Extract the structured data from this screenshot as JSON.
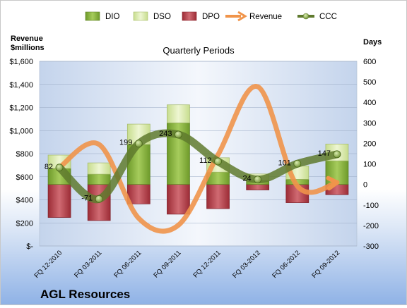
{
  "company": "AGL Resources",
  "chart_data": {
    "type": "bar",
    "title": "Quarterly Periods",
    "left_axis_label": [
      "Revenue",
      "$millions"
    ],
    "right_axis_label": "Days",
    "categories": [
      "FQ 12-2010",
      "FQ 03-2011",
      "FQ 06-2011",
      "FQ 09-2011",
      "FQ 12-2011",
      "FQ 03-2012",
      "FQ 06-2012",
      "FQ 09-2012"
    ],
    "left_axis": {
      "range": [
        0,
        1600
      ],
      "ticks": [
        0,
        200,
        400,
        600,
        800,
        1000,
        1200,
        1400,
        1600
      ],
      "tick_labels": [
        "$-",
        "$200",
        "$400",
        "$600",
        "$800",
        "$1,000",
        "$1,200",
        "$1,400",
        "$1,600"
      ]
    },
    "right_axis": {
      "range": [
        -300,
        600
      ],
      "ticks": [
        -300,
        -200,
        -100,
        0,
        100,
        200,
        300,
        400,
        500,
        600
      ],
      "tick_labels": [
        "-300",
        "-200",
        "-100",
        "0",
        "100",
        "200",
        "300",
        "400",
        "500",
        "600"
      ]
    },
    "legend": [
      "DIO",
      "DSO",
      "DPO",
      "Revenue",
      "CCC"
    ],
    "legend_position": "top",
    "gridlines": "horizontal",
    "series": [
      {
        "name": "DIO",
        "axis": "right",
        "color": "#77a033",
        "values": [
          78,
          50,
          195,
          300,
          60,
          20,
          25,
          115
        ]
      },
      {
        "name": "DSO",
        "axis": "right",
        "color": "#d7e8a6",
        "values": [
          65,
          55,
          99,
          88,
          70,
          31,
          65,
          82
        ]
      },
      {
        "name": "DPO",
        "axis": "right",
        "color": "#b8404a",
        "values": [
          -161,
          -176,
          -95,
          -145,
          -118,
          -27,
          -89,
          -50
        ]
      },
      {
        "name": "Revenue",
        "axis": "left",
        "color": "#f0944a",
        "values": [
          680,
          880,
          240,
          180,
          790,
          1380,
          520,
          550
        ]
      },
      {
        "name": "CCC",
        "axis": "right",
        "color": "#5f7a2e",
        "values": [
          82,
          -71,
          199,
          243,
          112,
          24,
          101,
          147
        ]
      }
    ],
    "data_labels": [
      "82",
      "-71",
      "199",
      "243",
      "112",
      "24",
      "101",
      "147"
    ]
  }
}
